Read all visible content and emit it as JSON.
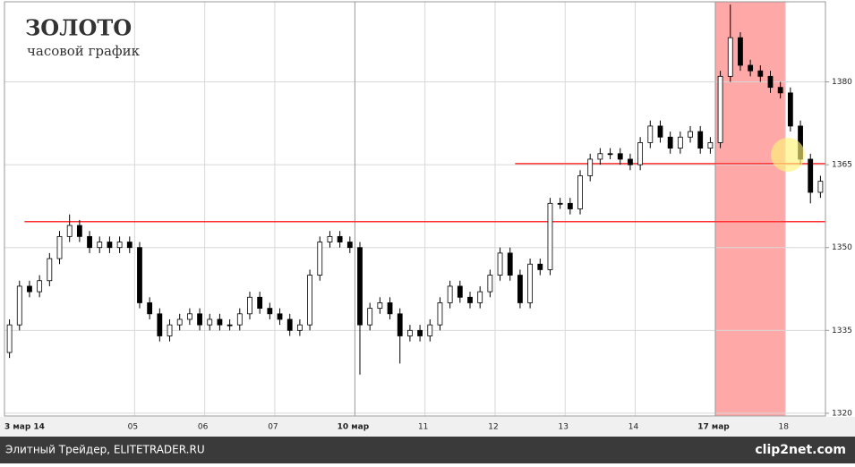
{
  "chart_data": {
    "type": "candlestick",
    "title": "ЗОЛОТО",
    "subtitle": "часовой график",
    "categories": [
      "3 мар 14",
      null,
      null,
      null,
      null,
      null,
      null,
      null,
      null,
      null,
      null,
      null,
      null,
      "05",
      null,
      null,
      null,
      null,
      null,
      null,
      "06",
      null,
      null,
      null,
      null,
      null,
      null,
      "07",
      null,
      null,
      null,
      null,
      null,
      null,
      null,
      "10 мар",
      null,
      null,
      null,
      null,
      null,
      null,
      "11",
      null,
      null,
      null,
      null,
      null,
      null,
      "12",
      null,
      null,
      null,
      null,
      null,
      null,
      "13",
      null,
      null,
      null,
      null,
      null,
      null,
      "14",
      null,
      null,
      null,
      null,
      null,
      null,
      null,
      "17 мар",
      null,
      null,
      null,
      null,
      null,
      null,
      "18",
      null,
      null,
      null
    ],
    "open": [
      1331,
      1336,
      1343,
      1342,
      1344,
      1348,
      1352,
      1354,
      1352,
      1350,
      1351,
      1350,
      1351,
      1350,
      1340,
      1338,
      1334,
      1336,
      1337,
      1338,
      1336,
      1337,
      1336,
      1336,
      1338,
      1341,
      1339,
      1338,
      1337,
      1335,
      1336,
      1345,
      1351,
      1352,
      1351,
      1350,
      1336,
      1339,
      1340,
      1338,
      1334,
      1335,
      1334,
      1336,
      1340,
      1343,
      1341,
      1340,
      1342,
      1345,
      1349,
      1345,
      1340,
      1347,
      1346,
      1358,
      1358,
      1357,
      1363,
      1366,
      1367,
      1367,
      1366,
      1365,
      1369,
      1372,
      1370,
      1368,
      1370,
      1371,
      1368,
      1369,
      1381,
      1388,
      1383,
      1382,
      1381,
      1379,
      1378,
      1372,
      1366,
      1360
    ],
    "high": [
      1337,
      1344,
      1344,
      1345,
      1349,
      1353,
      1356,
      1355,
      1353,
      1352,
      1352,
      1352,
      1352,
      1351,
      1341,
      1339,
      1337,
      1338,
      1339,
      1339,
      1338,
      1338,
      1337,
      1339,
      1342,
      1342,
      1340,
      1339,
      1338,
      1337,
      1346,
      1352,
      1353,
      1353,
      1352,
      1351,
      1340,
      1341,
      1341,
      1339,
      1336,
      1336,
      1337,
      1341,
      1344,
      1344,
      1342,
      1343,
      1346,
      1350,
      1350,
      1346,
      1348,
      1348,
      1359,
      1359,
      1359,
      1364,
      1367,
      1368,
      1368,
      1368,
      1367,
      1370,
      1373,
      1373,
      1371,
      1371,
      1372,
      1372,
      1370,
      1382,
      1394,
      1389,
      1384,
      1383,
      1382,
      1380,
      1379,
      1373,
      1367,
      1363
    ],
    "low": [
      1330,
      1335,
      1341,
      1341,
      1343,
      1347,
      1351,
      1351,
      1349,
      1349,
      1349,
      1349,
      1349,
      1339,
      1337,
      1333,
      1333,
      1335,
      1336,
      1335,
      1335,
      1335,
      1335,
      1335,
      1337,
      1338,
      1337,
      1336,
      1334,
      1334,
      1335,
      1344,
      1350,
      1350,
      1349,
      1327,
      1335,
      1338,
      1337,
      1329,
      1333,
      1333,
      1333,
      1335,
      1339,
      1340,
      1339,
      1339,
      1341,
      1344,
      1344,
      1339,
      1339,
      1345,
      1345,
      1357,
      1356,
      1356,
      1362,
      1365,
      1366,
      1365,
      1364,
      1364,
      1368,
      1369,
      1367,
      1367,
      1369,
      1367,
      1367,
      1368,
      1380,
      1382,
      1381,
      1380,
      1378,
      1377,
      1371,
      1365,
      1358,
      1359
    ],
    "close": [
      1336,
      1343,
      1342,
      1344,
      1348,
      1352,
      1354,
      1352,
      1350,
      1351,
      1350,
      1351,
      1350,
      1340,
      1338,
      1334,
      1336,
      1337,
      1338,
      1336,
      1337,
      1336,
      1336,
      1338,
      1341,
      1339,
      1338,
      1337,
      1335,
      1336,
      1345,
      1351,
      1352,
      1351,
      1350,
      1336,
      1339,
      1340,
      1338,
      1334,
      1335,
      1334,
      1336,
      1340,
      1343,
      1341,
      1340,
      1342,
      1345,
      1349,
      1345,
      1340,
      1347,
      1346,
      1358,
      1358,
      1357,
      1363,
      1366,
      1367,
      1367,
      1366,
      1365,
      1369,
      1372,
      1370,
      1368,
      1370,
      1371,
      1368,
      1369,
      1381,
      1388,
      1383,
      1382,
      1381,
      1379,
      1378,
      1372,
      1366,
      1360,
      1362
    ],
    "ylim": [
      1319.5,
      1394.5
    ],
    "yticks": [
      1320,
      1335,
      1350,
      1365,
      1380
    ],
    "grid": true,
    "color": "#000000",
    "up_color": "#ffffff",
    "reference_lines": [
      {
        "value": 1354.7,
        "start": 2,
        "color": "#ff3333"
      },
      {
        "value": 1365.2,
        "start": 51,
        "color": "#ff3333"
      }
    ],
    "highlight": {
      "start": 71,
      "end": 77,
      "color": "#ffa8a8"
    }
  },
  "footer": {
    "source": "Элитный Трейдер, ELITETRADER.RU",
    "logo": "clip2net.com"
  }
}
